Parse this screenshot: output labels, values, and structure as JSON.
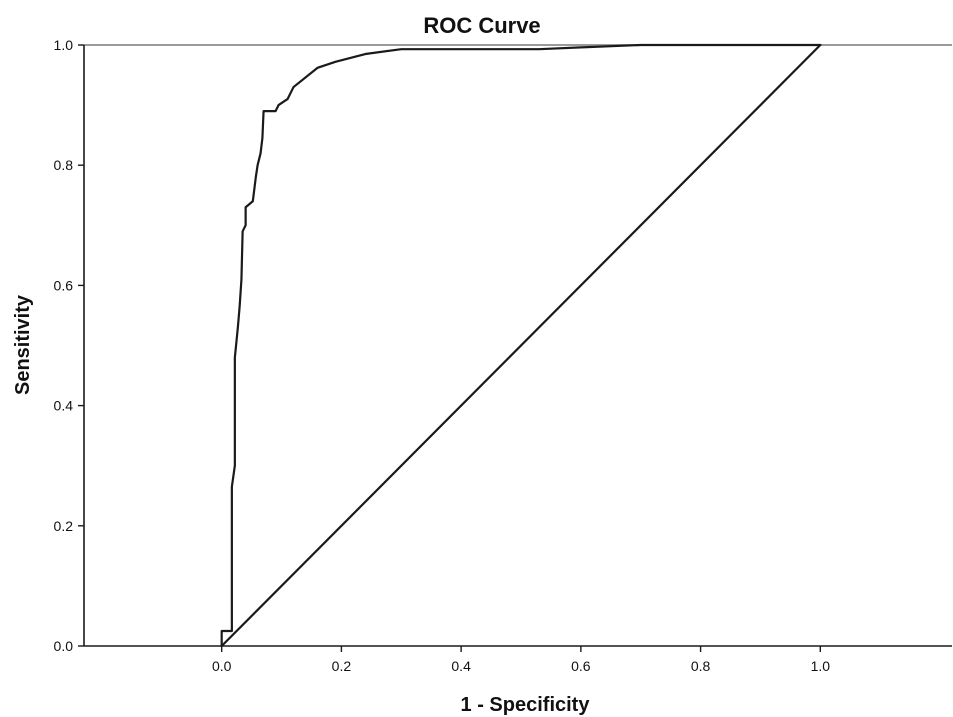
{
  "chart_data": {
    "type": "line",
    "title": "ROC Curve",
    "xlabel": "1 - Specificity",
    "ylabel": "Sensitivity",
    "xlim": [
      -0.23,
      1.22
    ],
    "ylim": [
      0.0,
      1.0
    ],
    "x_ticks": [
      "0.0",
      "0.2",
      "0.4",
      "0.6",
      "0.8",
      "1.0"
    ],
    "y_ticks": [
      "0.0",
      "0.2",
      "0.4",
      "0.6",
      "0.8",
      "1.0"
    ],
    "grid": false,
    "legend": "none",
    "series": [
      {
        "x": [
          0.0,
          0.0,
          0.017,
          0.017,
          0.022,
          0.022,
          0.027,
          0.03,
          0.033,
          0.035,
          0.04,
          0.04,
          0.052,
          0.057,
          0.06,
          0.065,
          0.068,
          0.07,
          0.09,
          0.095,
          0.11,
          0.12,
          0.16,
          0.19,
          0.24,
          0.3,
          0.4,
          0.53,
          0.6,
          0.7,
          0.8,
          1.0
        ],
        "y": [
          0.0,
          0.025,
          0.025,
          0.265,
          0.3,
          0.48,
          0.53,
          0.565,
          0.61,
          0.69,
          0.7,
          0.73,
          0.74,
          0.78,
          0.8,
          0.82,
          0.845,
          0.89,
          0.89,
          0.9,
          0.91,
          0.93,
          0.962,
          0.972,
          0.985,
          0.993,
          0.993,
          0.993,
          0.996,
          1.0,
          1.0,
          1.0
        ],
        "color": "#1a1a1a"
      },
      {
        "x": [
          0.0,
          1.0
        ],
        "y": [
          0.0,
          1.0
        ],
        "color": "#1a1a1a"
      }
    ]
  }
}
